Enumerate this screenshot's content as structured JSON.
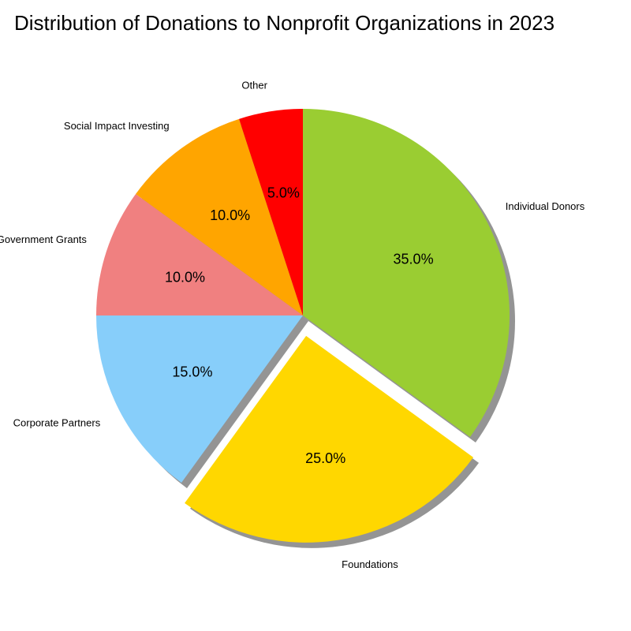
{
  "chart_data": {
    "type": "pie",
    "title": "Distribution of Donations to Nonprofit Organizations in 2023",
    "categories": [
      "Individual Donors",
      "Foundations",
      "Corporate Partners",
      "Government Grants",
      "Social Impact Investing",
      "Other"
    ],
    "values": [
      35.0,
      25.0,
      15.0,
      10.0,
      10.0,
      5.0
    ],
    "value_labels": [
      "35.0%",
      "25.0%",
      "15.0%",
      "10.0%",
      "10.0%",
      "5.0%"
    ],
    "colors": [
      "#9ACD32",
      "#FFD700",
      "#87CEFA",
      "#F08080",
      "#FFA500",
      "#FF0000"
    ],
    "explode": [
      0,
      0.1,
      0,
      0,
      0,
      0
    ],
    "shadow": true,
    "start_angle": 90,
    "direction": "clockwise"
  }
}
